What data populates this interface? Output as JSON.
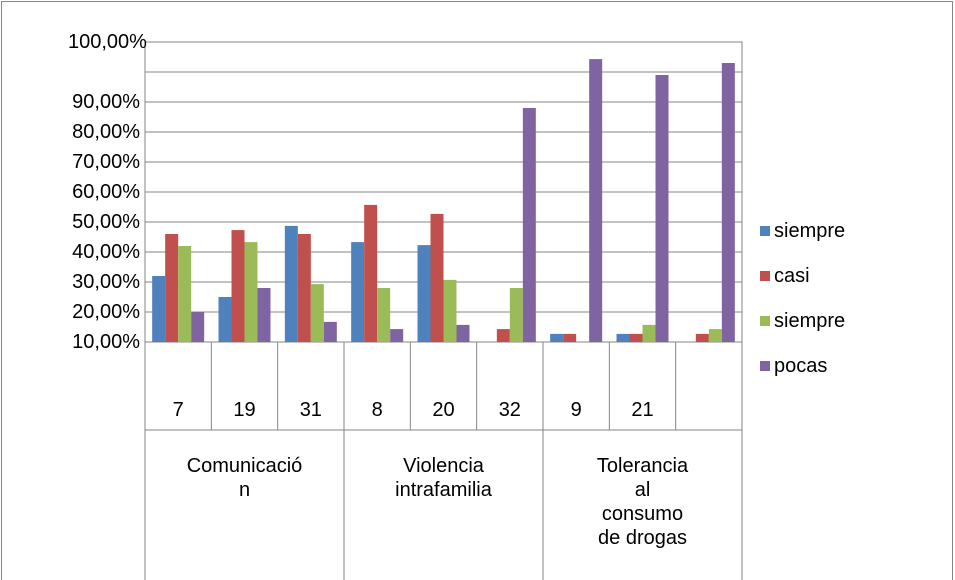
{
  "chart_data": {
    "type": "bar",
    "categories": [
      "7",
      "19",
      "31",
      "8",
      "20",
      "32",
      "9",
      "21",
      null
    ],
    "groups": [
      {
        "label": "Comunicación",
        "span": 3
      },
      {
        "label": "Violencia intrafamilia",
        "span": 3
      },
      {
        "label": "Tolerancia al consumo de drogas",
        "span": 3
      }
    ],
    "series": [
      {
        "name": "siempre",
        "color": "#4f81bd",
        "values": [
          32,
          25,
          48.7,
          43.3,
          42.3,
          null,
          12.7,
          12.7,
          null
        ]
      },
      {
        "name": "casi",
        "color": "#c0504d",
        "values": [
          46,
          47.3,
          46,
          55.7,
          52.7,
          14.3,
          12.7,
          12.7,
          12.7
        ]
      },
      {
        "name": "siempre",
        "color": "#9bbb59",
        "values": [
          42,
          43.3,
          29.3,
          28,
          30.7,
          28,
          null,
          15.7,
          14.3
        ]
      },
      {
        "name": "pocas",
        "color": "#8064a2",
        "values": [
          20,
          28,
          16.7,
          14.3,
          15.7,
          88,
          104.3,
          99,
          103
        ]
      }
    ],
    "ylim": [
      10,
      110
    ],
    "yticks": [
      {
        "value": 10,
        "label": "10,00%"
      },
      {
        "value": 20,
        "label": "20,00%"
      },
      {
        "value": 30,
        "label": "30,00%"
      },
      {
        "value": 40,
        "label": "40,00%"
      },
      {
        "value": 50,
        "label": "50,00%"
      },
      {
        "value": 60,
        "label": "60,00%"
      },
      {
        "value": 70,
        "label": "70,00%"
      },
      {
        "value": 80,
        "label": "80,00%"
      },
      {
        "value": 90,
        "label": "90,00%"
      },
      {
        "value": 100,
        "label": "100,00%"
      }
    ],
    "grid": true,
    "legend": "right"
  }
}
